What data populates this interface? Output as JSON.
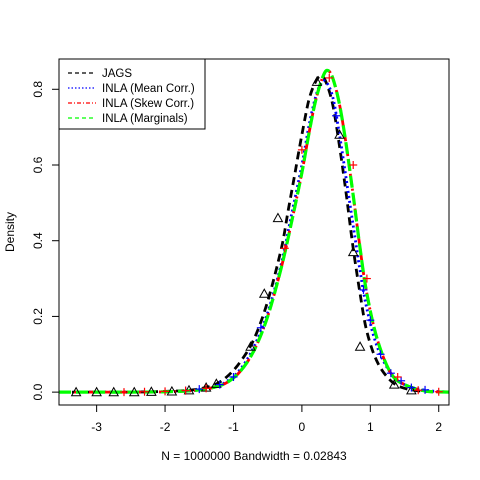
{
  "chart_data": {
    "type": "line",
    "title": "",
    "xlabel": "N = 1000000   Bandwidth = 0.02843",
    "ylabel": "Density",
    "xlim": [
      -3.55,
      2.15
    ],
    "ylim": [
      -0.034,
      0.88
    ],
    "xticks": [
      "-3",
      "-2",
      "-1",
      "0",
      "1",
      "2"
    ],
    "xtick_values": [
      -3,
      -2,
      -1,
      0,
      1,
      2
    ],
    "yticks": [
      "0.0",
      "0.2",
      "0.4",
      "0.6",
      "0.8"
    ],
    "ytick_values": [
      0.0,
      0.2,
      0.4,
      0.6,
      0.8
    ],
    "grid": false,
    "legend_position": "top-left",
    "series": [
      {
        "name": "JAGS",
        "color": "#000000",
        "line": "dashed",
        "marker": "triangle",
        "points": [
          [
            -3.55,
            0.0
          ],
          [
            -3.0,
            0.0
          ],
          [
            -2.5,
            0.0
          ],
          [
            -2.0,
            0.002
          ],
          [
            -1.6,
            0.006
          ],
          [
            -1.3,
            0.018
          ],
          [
            -1.1,
            0.04
          ],
          [
            -0.9,
            0.08
          ],
          [
            -0.7,
            0.14
          ],
          [
            -0.5,
            0.24
          ],
          [
            -0.3,
            0.38
          ],
          [
            -0.2,
            0.48
          ],
          [
            -0.1,
            0.58
          ],
          [
            0.0,
            0.68
          ],
          [
            0.1,
            0.77
          ],
          [
            0.2,
            0.82
          ],
          [
            0.28,
            0.835
          ],
          [
            0.35,
            0.82
          ],
          [
            0.45,
            0.76
          ],
          [
            0.55,
            0.65
          ],
          [
            0.65,
            0.52
          ],
          [
            0.75,
            0.38
          ],
          [
            0.85,
            0.26
          ],
          [
            0.95,
            0.16
          ],
          [
            1.1,
            0.08
          ],
          [
            1.3,
            0.03
          ],
          [
            1.5,
            0.01
          ],
          [
            1.8,
            0.002
          ],
          [
            2.15,
            0.0
          ]
        ],
        "marker_points": [
          [
            -3.3,
            0.0
          ],
          [
            -3.0,
            0.0
          ],
          [
            -2.75,
            0.0
          ],
          [
            -2.45,
            0.0
          ],
          [
            -2.2,
            0.001
          ],
          [
            -1.9,
            0.002
          ],
          [
            -1.65,
            0.005
          ],
          [
            -1.4,
            0.012
          ],
          [
            -1.25,
            0.022
          ],
          [
            -0.75,
            0.12
          ],
          [
            -0.55,
            0.26
          ],
          [
            -0.35,
            0.46
          ],
          [
            0.22,
            0.82
          ],
          [
            0.55,
            0.68
          ],
          [
            0.75,
            0.37
          ],
          [
            0.85,
            0.12
          ],
          [
            1.35,
            0.02
          ],
          [
            1.6,
            0.005
          ]
        ]
      },
      {
        "name": "INLA (Mean Corr.)",
        "color": "#0000ff",
        "line": "dotted",
        "marker": "plus",
        "points": [
          [
            -3.55,
            0.0
          ],
          [
            -3.0,
            0.0
          ],
          [
            -2.5,
            0.0
          ],
          [
            -2.0,
            0.001
          ],
          [
            -1.6,
            0.004
          ],
          [
            -1.3,
            0.012
          ],
          [
            -1.1,
            0.028
          ],
          [
            -0.9,
            0.06
          ],
          [
            -0.7,
            0.12
          ],
          [
            -0.5,
            0.21
          ],
          [
            -0.3,
            0.34
          ],
          [
            -0.15,
            0.47
          ],
          [
            0.0,
            0.6
          ],
          [
            0.1,
            0.7
          ],
          [
            0.2,
            0.78
          ],
          [
            0.28,
            0.815
          ],
          [
            0.35,
            0.82
          ],
          [
            0.45,
            0.78
          ],
          [
            0.55,
            0.68
          ],
          [
            0.65,
            0.56
          ],
          [
            0.75,
            0.44
          ],
          [
            0.85,
            0.32
          ],
          [
            0.95,
            0.22
          ],
          [
            1.1,
            0.12
          ],
          [
            1.3,
            0.05
          ],
          [
            1.5,
            0.02
          ],
          [
            1.8,
            0.005
          ],
          [
            2.15,
            0.0
          ]
        ],
        "marker_points": [
          [
            -1.7,
            0.004
          ],
          [
            -1.5,
            0.008
          ],
          [
            -1.2,
            0.02
          ],
          [
            -1.0,
            0.04
          ],
          [
            -0.6,
            0.17
          ],
          [
            0.5,
            0.73
          ],
          [
            0.9,
            0.27
          ],
          [
            1.0,
            0.19
          ],
          [
            1.15,
            0.1
          ],
          [
            1.3,
            0.05
          ],
          [
            1.45,
            0.03
          ],
          [
            1.6,
            0.012
          ],
          [
            1.8,
            0.006
          ]
        ]
      },
      {
        "name": "INLA (Skew Corr.)",
        "color": "#ff0000",
        "line": "dashdot",
        "marker": "plus",
        "points": [
          [
            -3.55,
            0.0
          ],
          [
            -3.0,
            0.0
          ],
          [
            -2.5,
            0.0
          ],
          [
            -2.0,
            0.001
          ],
          [
            -1.6,
            0.004
          ],
          [
            -1.3,
            0.012
          ],
          [
            -1.1,
            0.025
          ],
          [
            -0.9,
            0.055
          ],
          [
            -0.7,
            0.11
          ],
          [
            -0.5,
            0.2
          ],
          [
            -0.3,
            0.33
          ],
          [
            -0.15,
            0.45
          ],
          [
            0.0,
            0.58
          ],
          [
            0.1,
            0.68
          ],
          [
            0.2,
            0.77
          ],
          [
            0.3,
            0.83
          ],
          [
            0.37,
            0.85
          ],
          [
            0.45,
            0.83
          ],
          [
            0.55,
            0.76
          ],
          [
            0.65,
            0.65
          ],
          [
            0.75,
            0.52
          ],
          [
            0.85,
            0.38
          ],
          [
            0.95,
            0.26
          ],
          [
            1.1,
            0.14
          ],
          [
            1.3,
            0.05
          ],
          [
            1.5,
            0.02
          ],
          [
            1.8,
            0.003
          ],
          [
            2.15,
            0.0
          ]
        ],
        "marker_points": [
          [
            -2.6,
            0.0
          ],
          [
            -2.3,
            0.001
          ],
          [
            -2.0,
            0.002
          ],
          [
            -1.7,
            0.004
          ],
          [
            -1.4,
            0.01
          ],
          [
            -0.25,
            0.38
          ],
          [
            0.0,
            0.64
          ],
          [
            0.4,
            0.83
          ],
          [
            0.75,
            0.6
          ],
          [
            0.95,
            0.3
          ],
          [
            1.4,
            0.04
          ],
          [
            1.7,
            0.005
          ],
          [
            2.0,
            0.001
          ]
        ]
      },
      {
        "name": "INLA (Marginals)",
        "color": "#00ff00",
        "line": "longdash",
        "marker": "none",
        "points": [
          [
            -3.55,
            0.0
          ],
          [
            -3.0,
            0.0
          ],
          [
            -2.5,
            0.0
          ],
          [
            -2.0,
            0.001
          ],
          [
            -1.6,
            0.004
          ],
          [
            -1.3,
            0.012
          ],
          [
            -1.1,
            0.025
          ],
          [
            -0.9,
            0.055
          ],
          [
            -0.7,
            0.11
          ],
          [
            -0.5,
            0.2
          ],
          [
            -0.3,
            0.33
          ],
          [
            -0.15,
            0.45
          ],
          [
            0.0,
            0.58
          ],
          [
            0.1,
            0.68
          ],
          [
            0.2,
            0.77
          ],
          [
            0.3,
            0.83
          ],
          [
            0.37,
            0.85
          ],
          [
            0.45,
            0.83
          ],
          [
            0.55,
            0.76
          ],
          [
            0.65,
            0.65
          ],
          [
            0.75,
            0.52
          ],
          [
            0.85,
            0.38
          ],
          [
            0.95,
            0.26
          ],
          [
            1.1,
            0.14
          ],
          [
            1.3,
            0.05
          ],
          [
            1.5,
            0.02
          ],
          [
            1.8,
            0.003
          ],
          [
            2.15,
            0.0
          ]
        ],
        "marker_points": []
      }
    ]
  }
}
